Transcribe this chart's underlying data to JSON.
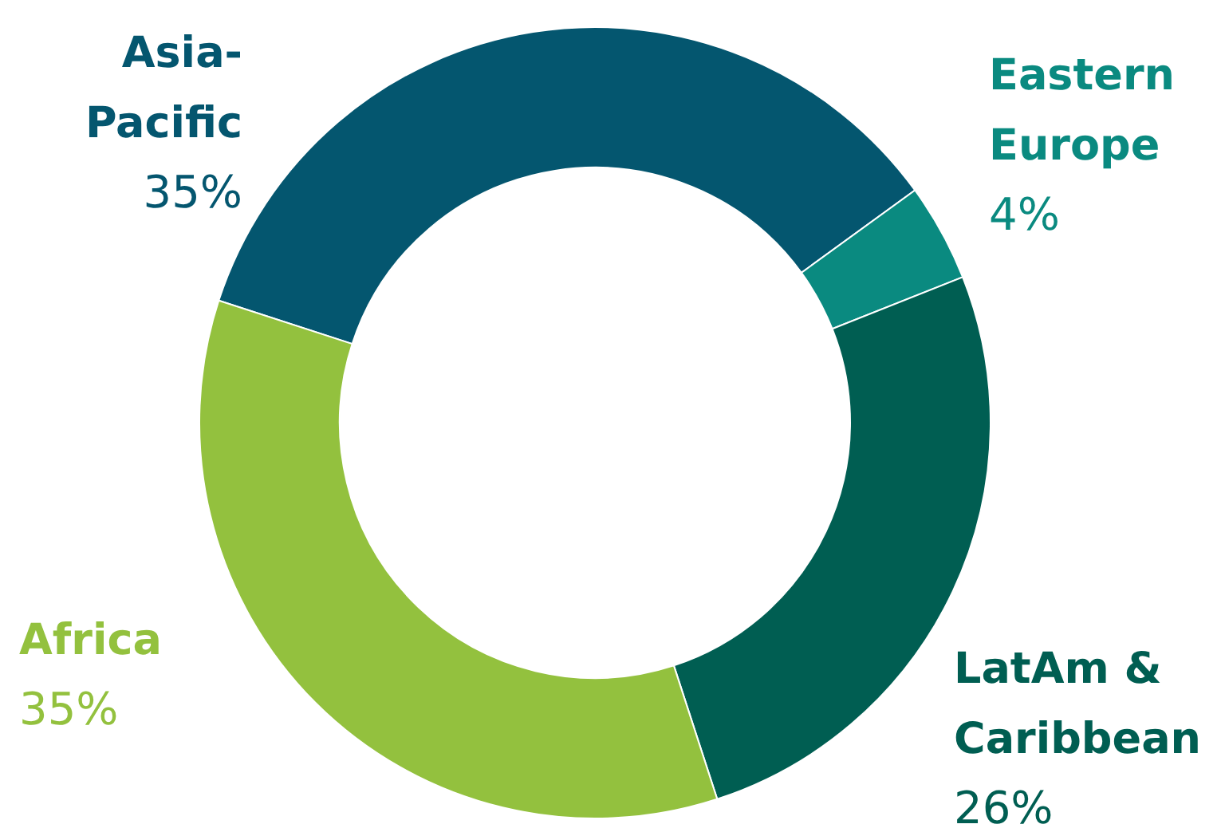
{
  "chart_data": {
    "type": "donut",
    "categories": [
      "Asia-Pacific",
      "Eastern Europe",
      "LatAm & Caribbean",
      "Africa"
    ],
    "values": [
      35,
      4,
      26,
      35
    ],
    "colors": [
      "#04566f",
      "#0a8a80",
      "#005e52",
      "#93c13e"
    ],
    "value_labels": [
      "35%",
      "4%",
      "26%",
      "35%"
    ],
    "legend": false
  }
}
